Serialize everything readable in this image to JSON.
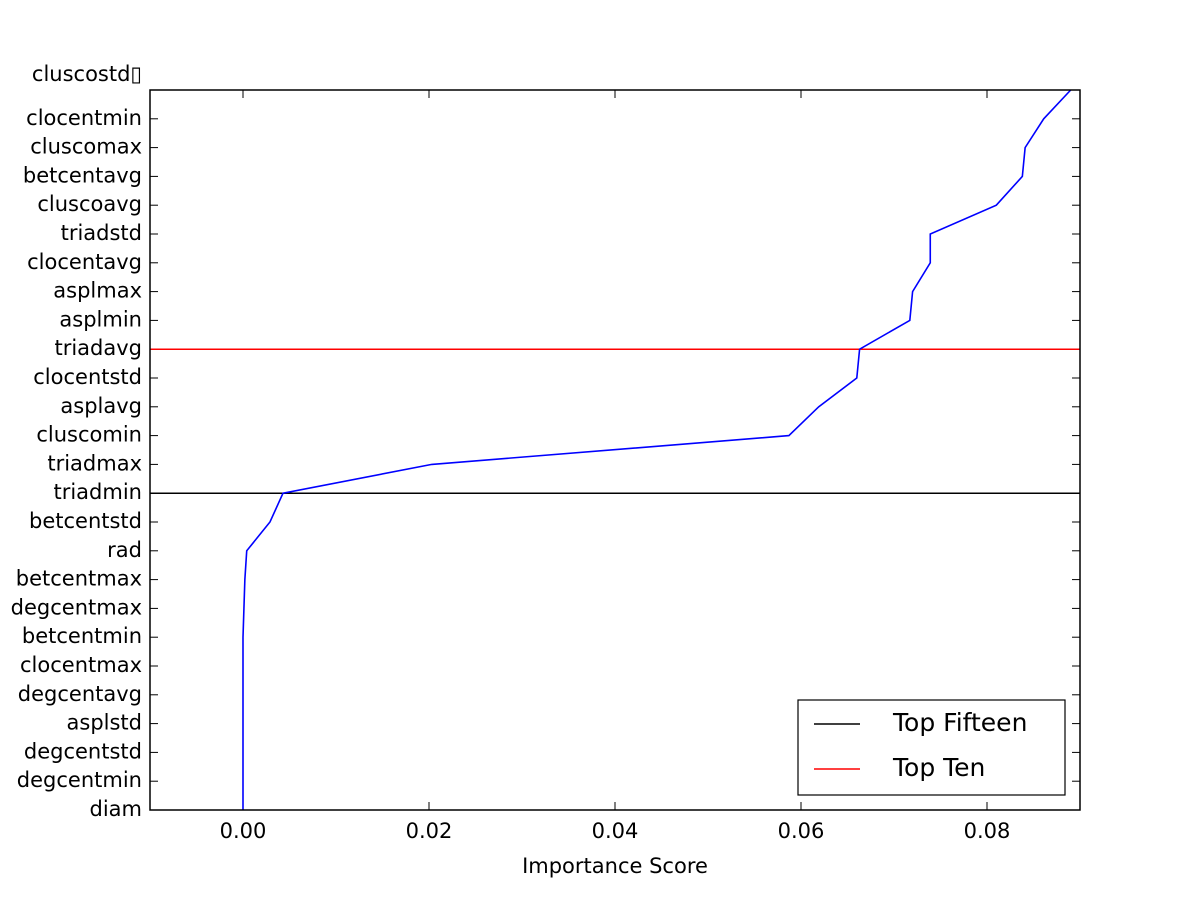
{
  "chart_data": {
    "type": "line",
    "orientation": "horizontal",
    "x_label": "Importance Score",
    "categories": [
      "diam",
      "degcentmin",
      "degcentstd",
      "asplstd",
      "degcentavg",
      "clocentmax",
      "betcentmin",
      "degcentmax",
      "betcentmax",
      "rad",
      "betcentstd",
      "triadmin",
      "triadmax",
      "cluscomin",
      "asplavg",
      "clocentstd",
      "triadavg",
      "asplmin",
      "asplmax",
      "clocentavg",
      "triadstd",
      "cluscoavg",
      "betcentavg",
      "cluscomax",
      "clocentmin",
      "cluscostd▯"
    ],
    "series": [
      {
        "color": "#0000ff",
        "values": [
          0.0,
          0.0,
          0.0,
          0.0,
          0.0,
          0.0,
          0.0,
          0.0001,
          0.0002,
          0.0004,
          0.0029,
          0.0043,
          0.0203,
          0.0587,
          0.0619,
          0.066,
          0.0663,
          0.0717,
          0.072,
          0.0739,
          0.0739,
          0.081,
          0.0838,
          0.0841,
          0.0861,
          0.089
        ]
      }
    ],
    "reference_lines": [
      {
        "name": "Top Fifteen",
        "color": "#000000",
        "category": 11
      },
      {
        "name": "Top Ten",
        "color": "#ff0000",
        "category": 16
      }
    ],
    "xlim": [
      -0.01,
      0.09
    ],
    "xticks": [
      {
        "value": 0,
        "label": "0.00"
      },
      {
        "value": 0.02,
        "label": "0.02"
      },
      {
        "value": 0.04,
        "label": "0.04"
      },
      {
        "value": 0.06,
        "label": "0.06"
      },
      {
        "value": 0.08,
        "label": "0.08"
      }
    ],
    "legend": "lower right"
  }
}
